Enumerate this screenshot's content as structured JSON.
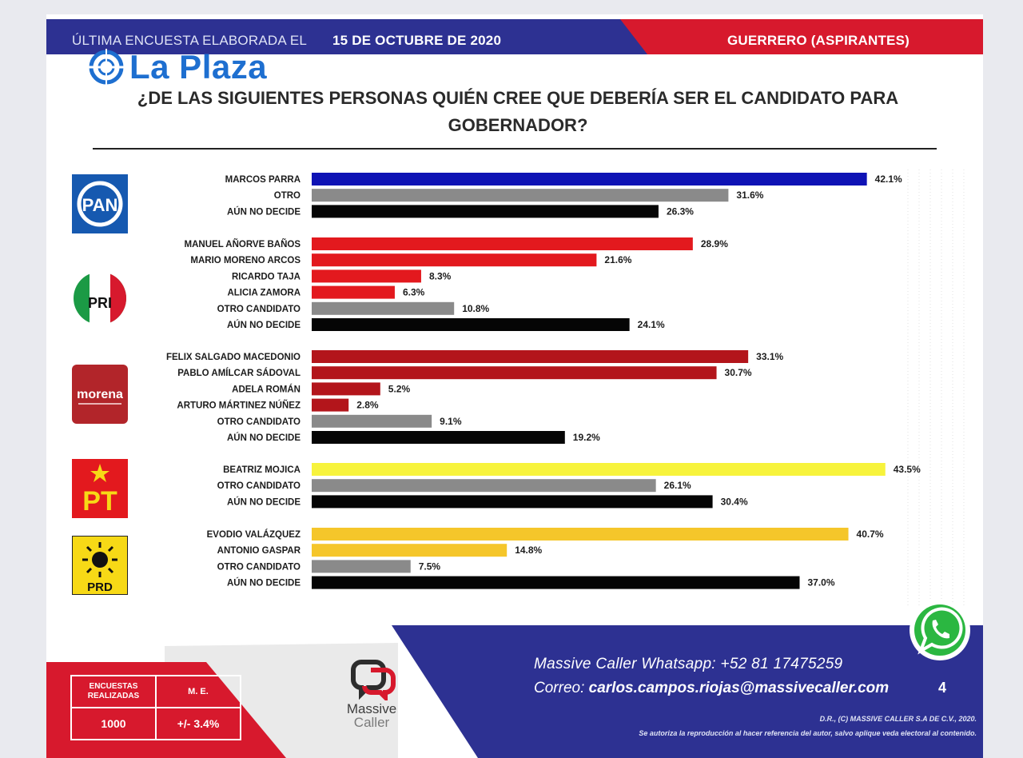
{
  "header": {
    "left_text": "ÚLTIMA ENCUESTA ELABORADA EL",
    "date": "15 DE OCTUBRE DE 2020",
    "right_text": "GUERRERO (ASPIRANTES)"
  },
  "watermark": "La Plaza",
  "question": {
    "line1": "¿DE LAS SIGUIENTES PERSONAS QUIÉN CREE QUE DEBERÍA SER EL CANDIDATO PARA",
    "line2": "GOBERNADOR?"
  },
  "party_logos": {
    "pan": "PAN",
    "pri": "PRI",
    "morena": "morena",
    "pt": "PT",
    "prd": "PRD"
  },
  "colors": {
    "navy": "#2d3192",
    "red_header": "#d7192d",
    "pan_blue": "#0f13b5",
    "pri_red": "#e3191e",
    "morena_red": "#b3151b",
    "gray": "#8a8a8a",
    "black": "#050505",
    "pt_yellow": "#f7f33c",
    "prd_yellow": "#f5c62a"
  },
  "chart_data": {
    "type": "bar",
    "orientation": "horizontal",
    "unit": "%",
    "xlim": [
      0,
      50
    ],
    "grid": false,
    "groups": [
      {
        "party": "PAN",
        "bars": [
          {
            "label": "MARCOS PARRA",
            "value": 42.1,
            "value_label": "42.1%",
            "color": "#0f13b5"
          },
          {
            "label": "OTRO",
            "value": 31.6,
            "value_label": "31.6%",
            "color": "#8a8a8a"
          },
          {
            "label": "AÚN NO DECIDE",
            "value": 26.3,
            "value_label": "26.3%",
            "color": "#050505"
          }
        ]
      },
      {
        "party": "PRI",
        "bars": [
          {
            "label": "MANUEL AÑORVE BAÑOS",
            "value": 28.9,
            "value_label": "28.9%",
            "color": "#e3191e"
          },
          {
            "label": "MARIO MORENO ARCOS",
            "value": 21.6,
            "value_label": "21.6%",
            "color": "#e3191e"
          },
          {
            "label": "RICARDO TAJA",
            "value": 8.3,
            "value_label": "8.3%",
            "color": "#e3191e"
          },
          {
            "label": "ALICIA ZAMORA",
            "value": 6.3,
            "value_label": "6.3%",
            "color": "#e3191e"
          },
          {
            "label": "OTRO CANDIDATO",
            "value": 10.8,
            "value_label": "10.8%",
            "color": "#8a8a8a"
          },
          {
            "label": "AÚN NO DECIDE",
            "value": 24.1,
            "value_label": "24.1%",
            "color": "#050505"
          }
        ]
      },
      {
        "party": "MORENA",
        "bars": [
          {
            "label": "FELIX SALGADO MACEDONIO",
            "value": 33.1,
            "value_label": "33.1%",
            "color": "#b3151b"
          },
          {
            "label": "PABLO AMÍLCAR SÁDOVAL",
            "value": 30.7,
            "value_label": "30.7%",
            "color": "#b3151b"
          },
          {
            "label": "ADELA ROMÁN",
            "value": 5.2,
            "value_label": "5.2%",
            "color": "#b3151b"
          },
          {
            "label": "ARTURO MÁRTINEZ NÚÑEZ",
            "value": 2.8,
            "value_label": "2.8%",
            "color": "#b3151b"
          },
          {
            "label": "OTRO CANDIDATO",
            "value": 9.1,
            "value_label": "9.1%",
            "color": "#8a8a8a"
          },
          {
            "label": "AÚN NO DECIDE",
            "value": 19.2,
            "value_label": "19.2%",
            "color": "#050505"
          }
        ]
      },
      {
        "party": "PT",
        "bars": [
          {
            "label": "BEATRIZ MOJICA",
            "value": 43.5,
            "value_label": "43.5%",
            "color": "#f7f33c"
          },
          {
            "label": "OTRO CANDIDATO",
            "value": 26.1,
            "value_label": "26.1%",
            "color": "#8a8a8a"
          },
          {
            "label": "AÚN NO DECIDE",
            "value": 30.4,
            "value_label": "30.4%",
            "color": "#050505"
          }
        ]
      },
      {
        "party": "PRD",
        "bars": [
          {
            "label": "EVODIO VALÁZQUEZ",
            "value": 40.7,
            "value_label": "40.7%",
            "color": "#f5c62a"
          },
          {
            "label": "ANTONIO GASPAR",
            "value": 14.8,
            "value_label": "14.8%",
            "color": "#f5c62a"
          },
          {
            "label": "OTRO CANDIDATO",
            "value": 7.5,
            "value_label": "7.5%",
            "color": "#8a8a8a"
          },
          {
            "label": "AÚN NO DECIDE",
            "value": 37.0,
            "value_label": "37.0%",
            "color": "#050505"
          }
        ]
      }
    ]
  },
  "footer": {
    "stats_header_1": "ENCUESTAS REALIZADAS",
    "stats_header_2": "M. E.",
    "stats_value_1": "1000",
    "stats_value_2": "+/- 3.4%",
    "brand_line1": "Massive",
    "brand_line2": "Caller",
    "contact_whatsapp": "Massive Caller Whatsapp:  +52 81 17475259",
    "contact_email_label": "Correo:",
    "contact_email": "carlos.campos.riojas@massivecaller.com",
    "page_number": "4",
    "legal_line1": "D.R., (C) MASSIVE CALLER S.A DE C.V., 2020.",
    "legal_line2": "Se autoriza la reproducción al hacer referencia del autor, salvo aplique veda electoral al contenido."
  }
}
